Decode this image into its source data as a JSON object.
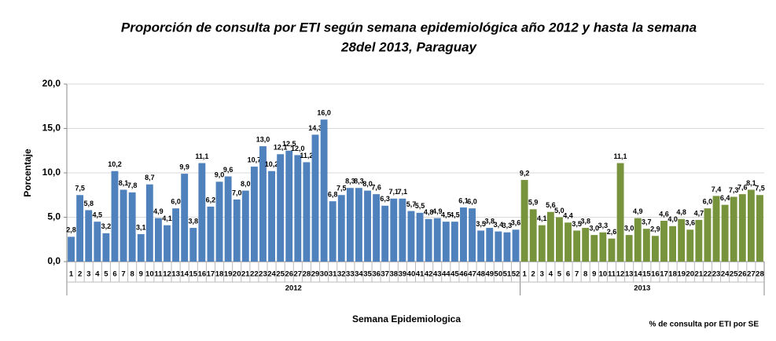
{
  "chart_data": {
    "type": "bar",
    "title_lines": [
      "Proporción de consulta por ETI según semana epidemiológica año 2012 y hasta la semana",
      "28del 2013, Paraguay"
    ],
    "y_label": "Porcentaje",
    "x_label": "Semana Epidemiologica",
    "note": "% de consulta por ETI  por  SE",
    "ylim": [
      0,
      20
    ],
    "yticks": [
      {
        "value": 0,
        "label": "0,0"
      },
      {
        "value": 5,
        "label": "5,0"
      },
      {
        "value": 10,
        "label": "10,0"
      },
      {
        "value": 15,
        "label": "15,0"
      },
      {
        "value": 20,
        "label": "20,0"
      }
    ],
    "grid": true,
    "groups": [
      {
        "name": "2012",
        "color": "#4f81bd",
        "categories": [
          "1",
          "2",
          "3",
          "4",
          "5",
          "6",
          "7",
          "8",
          "9",
          "10",
          "11",
          "12",
          "13",
          "14",
          "15",
          "16",
          "17",
          "18",
          "19",
          "20",
          "21",
          "22",
          "23",
          "24",
          "25",
          "26",
          "27",
          "28",
          "29",
          "30",
          "31",
          "32",
          "33",
          "34",
          "35",
          "36",
          "37",
          "38",
          "39",
          "40",
          "41",
          "42",
          "43",
          "44",
          "45",
          "46",
          "47",
          "48",
          "49",
          "50",
          "51",
          "52"
        ],
        "values": [
          2.8,
          7.5,
          5.8,
          4.5,
          3.2,
          10.2,
          8.1,
          7.8,
          3.1,
          8.7,
          4.9,
          4.1,
          6.0,
          9.9,
          3.8,
          11.1,
          6.2,
          9.0,
          9.6,
          7.0,
          8.0,
          10.7,
          13.0,
          10.2,
          12.1,
          12.5,
          12.0,
          11.2,
          14.3,
          16.0,
          6.8,
          7.5,
          8.3,
          8.3,
          8.0,
          7.6,
          6.3,
          7.1,
          7.1,
          5.7,
          5.5,
          4.8,
          4.9,
          4.5,
          4.5,
          6.1,
          6.0,
          3.5,
          3.8,
          3.4,
          3.3,
          3.6
        ],
        "value_labels": [
          "2,8",
          "7,5",
          "5,8",
          "4,5",
          "3,2",
          "10,2",
          "8,1",
          "7,8",
          "3,1",
          "8,7",
          "4,9",
          "4,1",
          "6,0",
          "9,9",
          "3,8",
          "11,1",
          "6,2",
          "9,0",
          "9,6",
          "7,0",
          "8,0",
          "10,7",
          "13,0",
          "10,2",
          "12,1",
          "12,5",
          "12,0",
          "11,2",
          "14,3",
          "16,0",
          "6,8",
          "7,5",
          "8,3",
          "8,3",
          "8,0",
          "7,6",
          "6,3",
          "7,1",
          "7,1",
          "5,7",
          "5,5",
          "4,8",
          "4,9",
          "4,5",
          "4,5",
          "6,1",
          "6,0",
          "3,5",
          "3,8",
          "3,4",
          "3,3",
          "3,6"
        ]
      },
      {
        "name": "2013",
        "color": "#77933c",
        "categories": [
          "1",
          "2",
          "3",
          "4",
          "5",
          "6",
          "7",
          "8",
          "9",
          "10",
          "11",
          "12",
          "13",
          "14",
          "15",
          "16",
          "17",
          "18",
          "19",
          "20",
          "21",
          "22",
          "23",
          "24",
          "25",
          "26",
          "27",
          "28"
        ],
        "values": [
          9.2,
          5.9,
          4.1,
          5.6,
          5.0,
          4.4,
          3.5,
          3.8,
          3.0,
          3.3,
          2.6,
          11.1,
          3.0,
          4.9,
          3.7,
          2.9,
          4.6,
          4.0,
          4.8,
          3.6,
          4.7,
          6.0,
          7.4,
          6.4,
          7.3,
          7.6,
          8.1,
          7.5
        ],
        "value_labels": [
          "9,2",
          "5,9",
          "4,1",
          "5,6",
          "5,0",
          "4,4",
          "3,5",
          "3,8",
          "3,0",
          "3,3",
          "2,6",
          "11,1",
          "3,0",
          "4,9",
          "3,7",
          "2,9",
          "4,6",
          "4,0",
          "4,8",
          "3,6",
          "4,7",
          "6,0",
          "7,4",
          "6,4",
          "7,3",
          "7,6",
          "8,1",
          "7,5"
        ]
      }
    ]
  }
}
